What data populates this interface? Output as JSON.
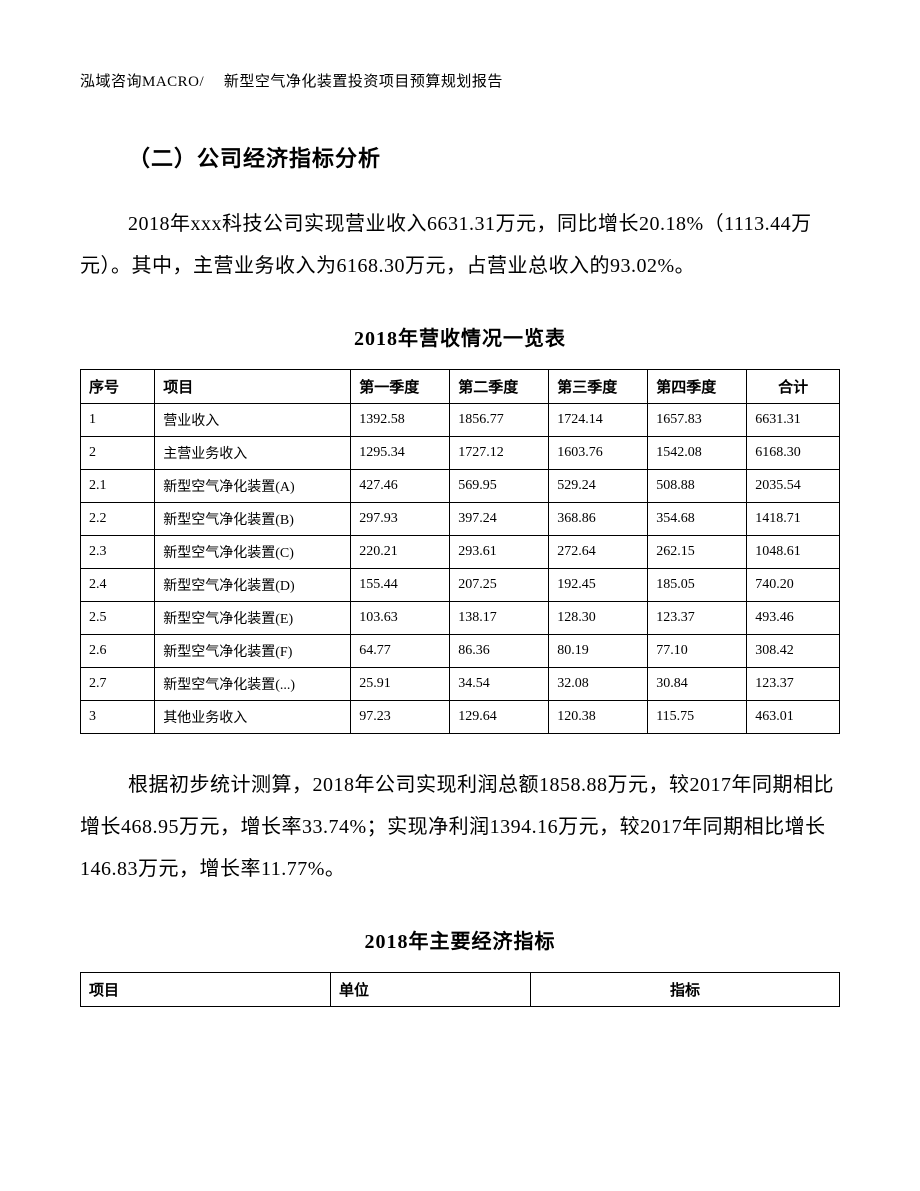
{
  "header_text": "泓域咨询MACRO/　 新型空气净化装置投资项目预算规划报告",
  "section_title": "（二）公司经济指标分析",
  "paragraph1": "2018年xxx科技公司实现营业收入6631.31万元，同比增长20.18%（1113.44万元）。其中，主营业务收入为6168.30万元，占营业总收入的93.02%。",
  "table1_title": "2018年营收情况一览表",
  "table1": {
    "columns": [
      "序号",
      "项目",
      "第一季度",
      "第二季度",
      "第三季度",
      "第四季度",
      "合计"
    ],
    "rows": [
      [
        "1",
        "营业收入",
        "1392.58",
        "1856.77",
        "1724.14",
        "1657.83",
        "6631.31"
      ],
      [
        "2",
        "主营业务收入",
        "1295.34",
        "1727.12",
        "1603.76",
        "1542.08",
        "6168.30"
      ],
      [
        "2.1",
        "新型空气净化装置(A)",
        "427.46",
        "569.95",
        "529.24",
        "508.88",
        "2035.54"
      ],
      [
        "2.2",
        "新型空气净化装置(B)",
        "297.93",
        "397.24",
        "368.86",
        "354.68",
        "1418.71"
      ],
      [
        "2.3",
        "新型空气净化装置(C)",
        "220.21",
        "293.61",
        "272.64",
        "262.15",
        "1048.61"
      ],
      [
        "2.4",
        "新型空气净化装置(D)",
        "155.44",
        "207.25",
        "192.45",
        "185.05",
        "740.20"
      ],
      [
        "2.5",
        "新型空气净化装置(E)",
        "103.63",
        "138.17",
        "128.30",
        "123.37",
        "493.46"
      ],
      [
        "2.6",
        "新型空气净化装置(F)",
        "64.77",
        "86.36",
        "80.19",
        "77.10",
        "308.42"
      ],
      [
        "2.7",
        "新型空气净化装置(...)",
        "25.91",
        "34.54",
        "32.08",
        "30.84",
        "123.37"
      ],
      [
        "3",
        "其他业务收入",
        "97.23",
        "129.64",
        "120.38",
        "115.75",
        "463.01"
      ]
    ]
  },
  "paragraph2": "根据初步统计测算，2018年公司实现利润总额1858.88万元，较2017年同期相比增长468.95万元，增长率33.74%；实现净利润1394.16万元，较2017年同期相比增长146.83万元，增长率11.77%。",
  "table2_title": "2018年主要经济指标",
  "table2": {
    "columns": [
      "项目",
      "单位",
      "指标"
    ]
  }
}
